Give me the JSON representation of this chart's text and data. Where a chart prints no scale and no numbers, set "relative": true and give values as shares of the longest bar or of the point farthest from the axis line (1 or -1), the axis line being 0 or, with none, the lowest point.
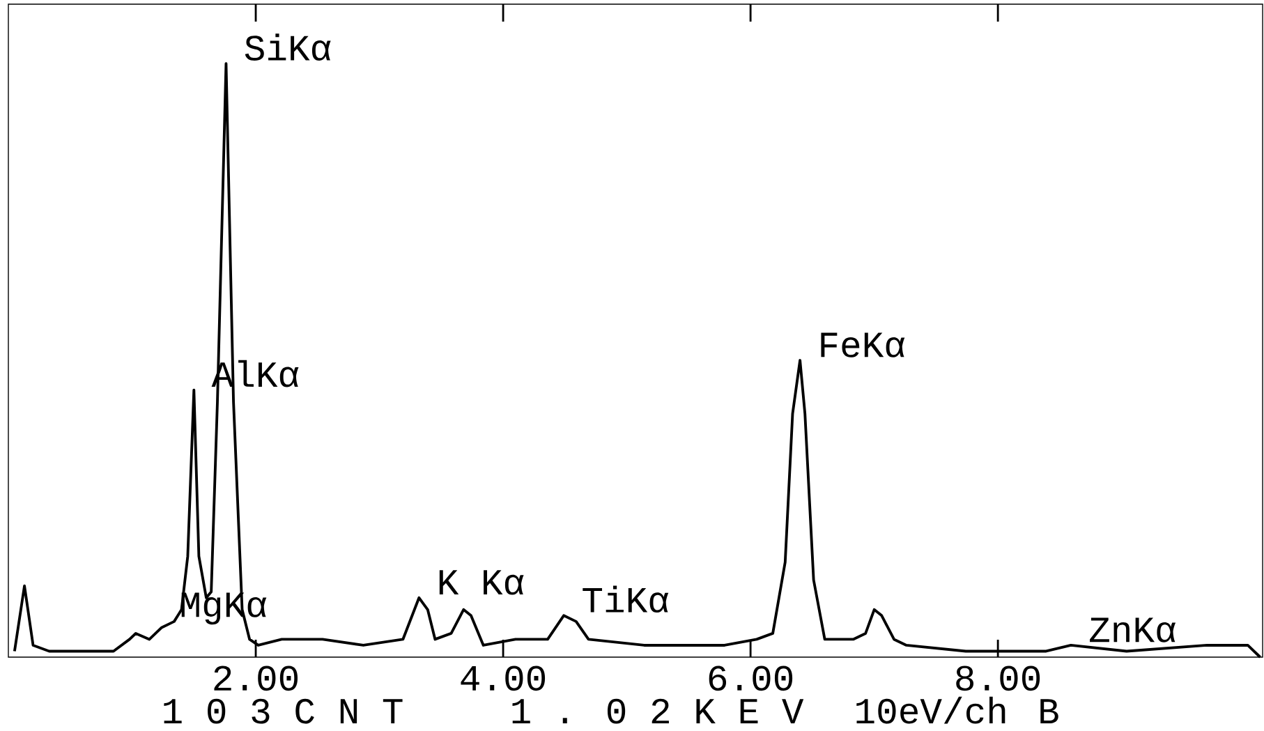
{
  "chart_data": {
    "type": "line",
    "relative": true,
    "color": "#000000",
    "marker": "none",
    "xlim": [
      0,
      10.14
    ],
    "xticks": [
      {
        "value": 2,
        "label": "2.00"
      },
      {
        "value": 4,
        "label": "4.00"
      },
      {
        "value": 6,
        "label": "6.00"
      },
      {
        "value": 8,
        "label": "8.00"
      }
    ],
    "x": [
      0.05,
      0.13,
      0.2,
      0.33,
      0.59,
      0.85,
      0.98,
      1.03,
      1.14,
      1.24,
      1.34,
      1.4,
      1.45,
      1.5,
      1.54,
      1.6,
      1.64,
      1.69,
      1.76,
      1.82,
      1.89,
      1.95,
      2.02,
      2.21,
      2.54,
      2.87,
      3.19,
      3.32,
      3.39,
      3.45,
      3.58,
      3.68,
      3.74,
      3.84,
      4.1,
      4.36,
      4.49,
      4.59,
      4.69,
      5.14,
      5.79,
      6.05,
      6.18,
      6.28,
      6.34,
      6.4,
      6.44,
      6.51,
      6.6,
      6.83,
      6.93,
      7.0,
      7.06,
      7.16,
      7.26,
      7.74,
      8.39,
      8.59,
      9.04,
      9.69,
      10.02,
      10.12
    ],
    "values": [
      0.01,
      0.12,
      0.02,
      0.01,
      0.01,
      0.01,
      0.03,
      0.04,
      0.03,
      0.05,
      0.06,
      0.08,
      0.17,
      0.45,
      0.17,
      0.1,
      0.11,
      0.43,
      1.0,
      0.43,
      0.08,
      0.03,
      0.02,
      0.03,
      0.03,
      0.02,
      0.03,
      0.1,
      0.08,
      0.03,
      0.04,
      0.08,
      0.07,
      0.02,
      0.03,
      0.03,
      0.07,
      0.06,
      0.03,
      0.02,
      0.02,
      0.03,
      0.04,
      0.16,
      0.41,
      0.5,
      0.41,
      0.13,
      0.03,
      0.03,
      0.04,
      0.08,
      0.07,
      0.03,
      0.02,
      0.01,
      0.01,
      0.02,
      0.01,
      0.02,
      0.02,
      0.0
    ],
    "annotations": [
      {
        "text": "SiKα",
        "x": 1.76,
        "y": 1.0
      },
      {
        "text": "AlKα",
        "x": 1.5,
        "y": 0.45
      },
      {
        "text": "MgKα",
        "x": 1.24,
        "y": 0.05
      },
      {
        "text": "K Kα",
        "x": 3.32,
        "y": 0.1
      },
      {
        "text": "TiKα",
        "x": 4.49,
        "y": 0.07
      },
      {
        "text": "FeKα",
        "x": 6.4,
        "y": 0.5
      },
      {
        "text": "ZnKα",
        "x": 8.59,
        "y": 0.02
      },
      "1 0 3 C N T",
      "1 . 0 2 K E V",
      "10eV/ch",
      "B"
    ]
  }
}
